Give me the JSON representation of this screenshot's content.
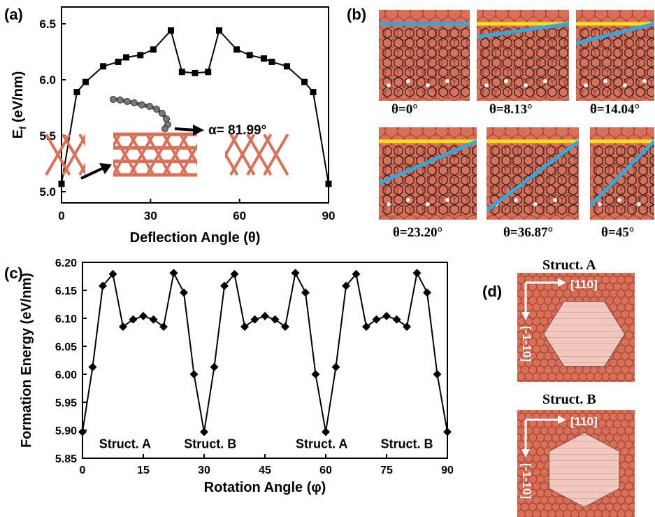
{
  "panels": {
    "a": {
      "label": "(a)",
      "inset_annotation": "α= 81.99°"
    },
    "b": {
      "label": "(b)",
      "tiles": [
        {
          "caption": "θ=0°",
          "theta": 0
        },
        {
          "caption": "θ=8.13°",
          "theta": 8.13
        },
        {
          "caption": "θ=14.04°",
          "theta": 14.04
        },
        {
          "caption": "θ=23.20°",
          "theta": 23.2
        },
        {
          "caption": "θ=36.87°",
          "theta": 36.87
        },
        {
          "caption": "θ=45°",
          "theta": 45
        }
      ]
    },
    "c": {
      "label": "(c)"
    },
    "d": {
      "label": "(d)",
      "structures": [
        {
          "title": "Struct. A",
          "dir_h": "[110]",
          "dir_v": "[-1-10]",
          "rotation": 0
        },
        {
          "title": "Struct. B",
          "dir_h": "[110]",
          "dir_v": "[-1-10]",
          "rotation": 30
        }
      ]
    }
  },
  "colors": {
    "substrate": "#d9705a",
    "substrate_dark": "#a8432f",
    "yellow_line": "#f4e21c",
    "blue_line": "#2fa9de",
    "flake": "#f2c8bf",
    "arrow": "#ffffff"
  },
  "chart_data": [
    {
      "type": "line",
      "panel": "a",
      "xlabel": "Deflection Angle (θ)",
      "ylabel": "E_f (eV/nm)",
      "ylabel_main": "E",
      "ylabel_sub": "f",
      "ylabel_rest": " (eV/nm)",
      "xlim": [
        0,
        90
      ],
      "ylim": [
        4.9,
        6.65
      ],
      "xticks": [
        0,
        30,
        60,
        90
      ],
      "yticks": [
        5.0,
        5.5,
        6.0,
        6.5
      ],
      "marker": "square",
      "x": [
        0,
        5.19,
        8.13,
        14.04,
        19.1,
        21.8,
        26.57,
        30.96,
        36.87,
        40.6,
        45,
        49.4,
        53.13,
        59.04,
        63.43,
        68.2,
        70.9,
        75.96,
        81.87,
        84.81,
        90
      ],
      "y": [
        5.07,
        5.89,
        5.98,
        6.12,
        6.16,
        6.2,
        6.22,
        6.27,
        6.44,
        6.07,
        6.06,
        6.07,
        6.44,
        6.27,
        6.22,
        6.19,
        6.16,
        6.12,
        5.98,
        5.89,
        5.07
      ]
    },
    {
      "type": "line",
      "panel": "c",
      "xlabel": "Rotation Angle (φ)",
      "ylabel": "Formation Energy (eV/nm)",
      "xlim": [
        0,
        90
      ],
      "ylim": [
        5.85,
        6.2
      ],
      "xticks": [
        0,
        15,
        30,
        45,
        60,
        75,
        90
      ],
      "yticks": [
        5.85,
        5.9,
        5.95,
        6.0,
        6.05,
        6.1,
        6.15,
        6.2
      ],
      "ytick_labels": [
        "5.85",
        "5.90",
        "5.95",
        "6.00",
        "6.05",
        "6.10",
        "6.15",
        "6.20"
      ],
      "marker": "diamond",
      "x": [
        0,
        2.5,
        5,
        7.5,
        10,
        12.5,
        15,
        17.5,
        20,
        22.5,
        25,
        27.5,
        30,
        32.5,
        35,
        37.5,
        40,
        42.5,
        45,
        47.5,
        50,
        52.5,
        55,
        57.5,
        60,
        62.5,
        65,
        67.5,
        70,
        72.5,
        75,
        77.5,
        80,
        82.5,
        85,
        87.5,
        90
      ],
      "y": [
        5.897,
        6.013,
        6.158,
        6.179,
        6.085,
        6.098,
        6.104,
        6.098,
        6.085,
        6.181,
        6.146,
        6.0,
        5.897,
        6.013,
        6.158,
        6.179,
        6.085,
        6.098,
        6.104,
        6.098,
        6.085,
        6.181,
        6.146,
        6.0,
        5.897,
        6.013,
        6.158,
        6.179,
        6.085,
        6.098,
        6.104,
        6.098,
        6.085,
        6.181,
        6.146,
        6.0,
        5.897
      ],
      "annotations": [
        {
          "text": "Struct. A",
          "x": 10.5,
          "y": 5.868
        },
        {
          "text": "Struct. B",
          "x": 31.5,
          "y": 5.868
        },
        {
          "text": "Struct. A",
          "x": 59,
          "y": 5.868
        },
        {
          "text": "Struct. B",
          "x": 80,
          "y": 5.868
        }
      ]
    }
  ]
}
